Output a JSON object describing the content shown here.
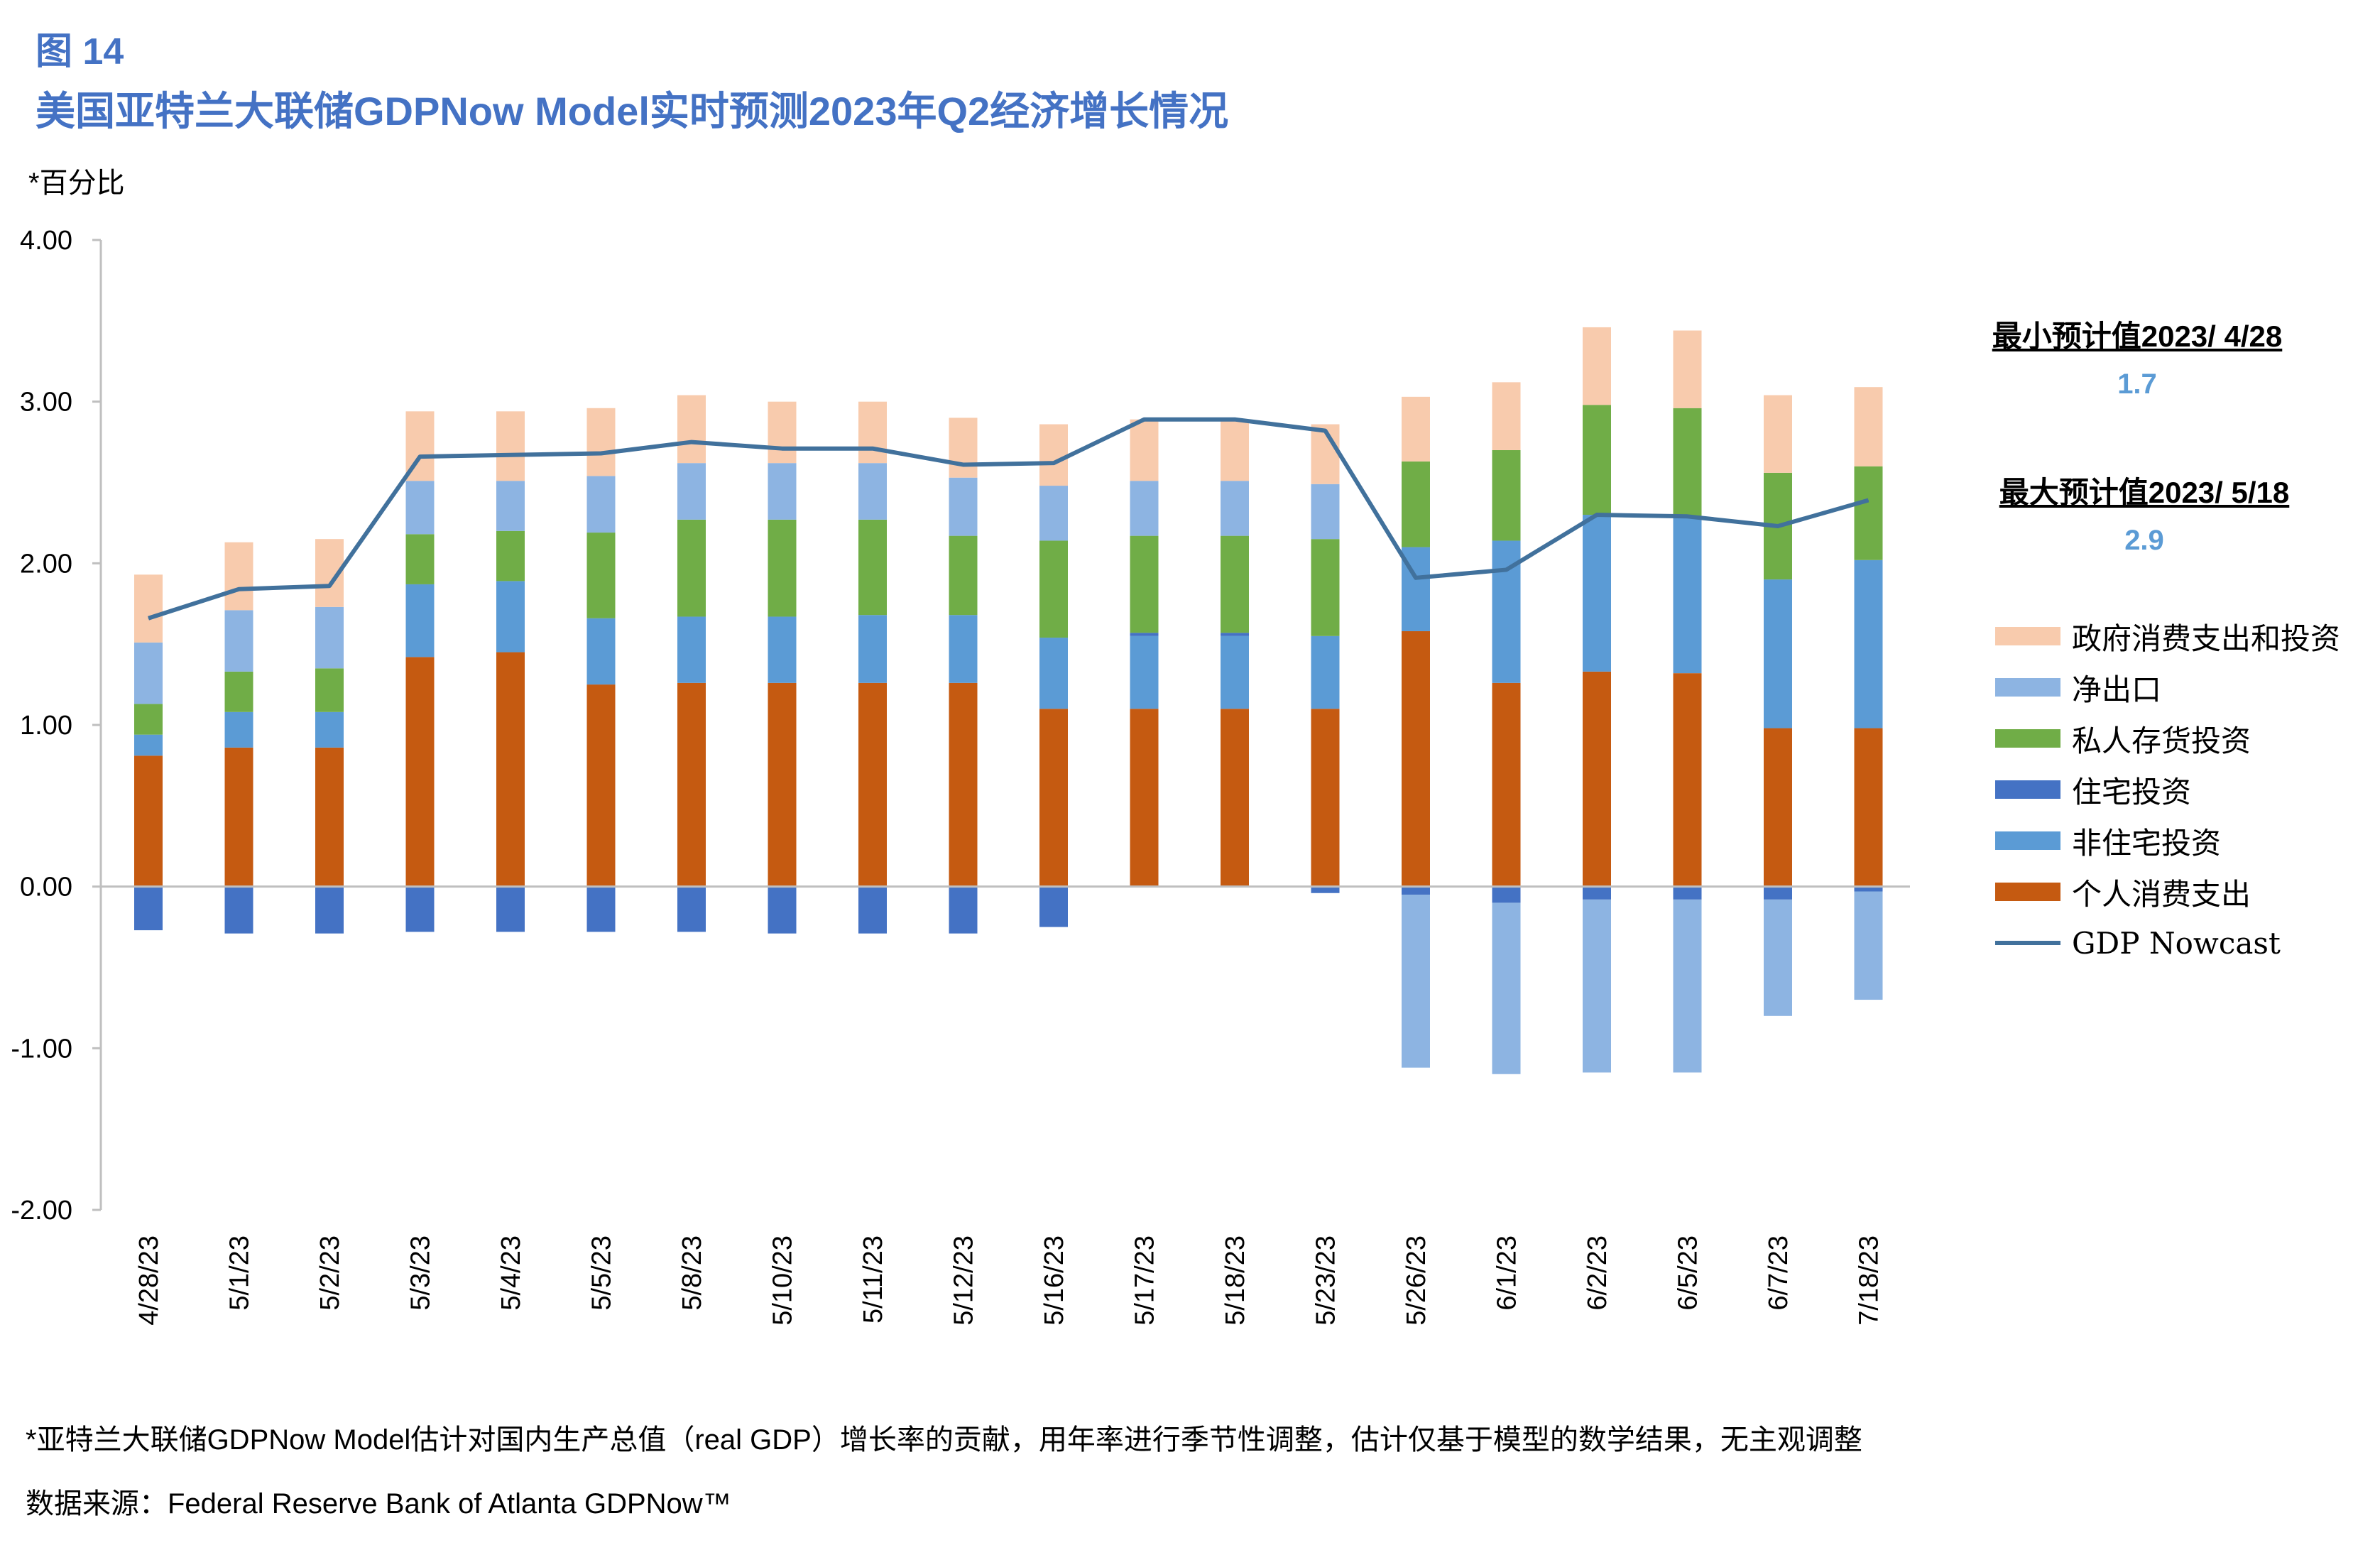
{
  "figure": {
    "label": "图 14",
    "title": "美国亚特兰大联储GDPNow Model实时预测2023年Q2经济增长情况",
    "unit": "*百分比"
  },
  "annotations": {
    "min_label": "最小预计值2023/ 4/28",
    "min_value": "1.7",
    "max_label": "最大预计值2023/ 5/18",
    "max_value": "2.9"
  },
  "legend": [
    {
      "label": "政府消费支出和投资",
      "color": "#F8CBAD",
      "kind": "bar"
    },
    {
      "label": "净出口",
      "color": "#8DB4E2",
      "kind": "bar"
    },
    {
      "label": "私人存货投资",
      "color": "#70AD47",
      "kind": "bar"
    },
    {
      "label": "住宅投资",
      "color": "#4472C4",
      "kind": "bar"
    },
    {
      "label": "非住宅投资",
      "color": "#5B9BD5",
      "kind": "bar"
    },
    {
      "label": "个人消费支出",
      "color": "#C55A11",
      "kind": "bar"
    },
    {
      "label": "GDP Nowcast",
      "color": "#41719C",
      "kind": "line"
    }
  ],
  "footnote": "*亚特兰大联储GDPNow Model估计对国内生产总值（real GDP）增长率的贡献，用年率进行季节性调整，估计仅基于模型的数学结果，无主观调整",
  "source": "数据来源：Federal Reserve Bank of Atlanta GDPNow™",
  "chart_data": {
    "type": "bar",
    "stacked": true,
    "ylim": [
      -2.0,
      4.0
    ],
    "yticks": [
      "4.00",
      "3.00",
      "2.00",
      "1.00",
      "0.00",
      "-1.00",
      "-2.00"
    ],
    "ytick_values": [
      4,
      3,
      2,
      1,
      0,
      -1,
      -2
    ],
    "grid": false,
    "categories": [
      "4/28/23",
      "5/1/23",
      "5/2/23",
      "5/3/23",
      "5/4/23",
      "5/5/23",
      "5/8/23",
      "5/10/23",
      "5/11/23",
      "5/12/23",
      "5/16/23",
      "5/17/23",
      "5/18/23",
      "5/23/23",
      "5/26/23",
      "6/1/23",
      "6/2/23",
      "6/5/23",
      "6/7/23",
      "7/18/23"
    ],
    "series": [
      {
        "name": "个人消费支出",
        "color": "#C55A11",
        "values": [
          0.81,
          0.86,
          0.86,
          1.42,
          1.45,
          1.25,
          1.26,
          1.26,
          1.26,
          1.26,
          1.1,
          1.1,
          1.1,
          1.1,
          1.58,
          1.26,
          1.33,
          1.32,
          0.98,
          0.98
        ]
      },
      {
        "name": "非住宅投资",
        "color": "#5B9BD5",
        "values": [
          0.13,
          0.22,
          0.22,
          0.45,
          0.44,
          0.41,
          0.41,
          0.41,
          0.42,
          0.42,
          0.44,
          0.45,
          0.45,
          0.45,
          0.52,
          0.88,
          0.97,
          0.97,
          0.92,
          1.04
        ]
      },
      {
        "name": "住宅投资",
        "color": "#4472C4",
        "values": [
          -0.27,
          -0.29,
          -0.29,
          -0.28,
          -0.28,
          -0.28,
          -0.28,
          -0.29,
          -0.29,
          -0.29,
          -0.25,
          0.02,
          0.02,
          -0.04,
          -0.05,
          -0.1,
          -0.08,
          -0.08,
          -0.08,
          -0.03
        ]
      },
      {
        "name": "私人存货投资",
        "color": "#70AD47",
        "values": [
          0.19,
          0.25,
          0.27,
          0.31,
          0.31,
          0.53,
          0.6,
          0.6,
          0.59,
          0.49,
          0.6,
          0.6,
          0.6,
          0.6,
          0.53,
          0.56,
          0.68,
          0.67,
          0.66,
          0.58
        ]
      },
      {
        "name": "净出口",
        "color": "#8DB4E2",
        "values": [
          0.38,
          0.38,
          0.38,
          0.33,
          0.31,
          0.35,
          0.35,
          0.35,
          0.35,
          0.36,
          0.34,
          0.34,
          0.34,
          0.34,
          -1.07,
          -1.06,
          -1.07,
          -1.07,
          -0.72,
          -0.67
        ]
      },
      {
        "name": "政府消费支出和投资",
        "color": "#F8CBAD",
        "values": [
          0.42,
          0.42,
          0.42,
          0.43,
          0.43,
          0.42,
          0.42,
          0.38,
          0.38,
          0.37,
          0.38,
          0.38,
          0.37,
          0.37,
          0.4,
          0.42,
          0.48,
          0.48,
          0.48,
          0.49
        ]
      },
      {
        "name": "GDP Nowcast",
        "color": "#41719C",
        "kind": "line",
        "values": [
          1.66,
          1.84,
          1.86,
          2.66,
          2.67,
          2.68,
          2.75,
          2.71,
          2.71,
          2.61,
          2.62,
          2.89,
          2.89,
          2.82,
          1.91,
          1.96,
          2.3,
          2.29,
          2.23,
          2.39
        ]
      }
    ]
  }
}
